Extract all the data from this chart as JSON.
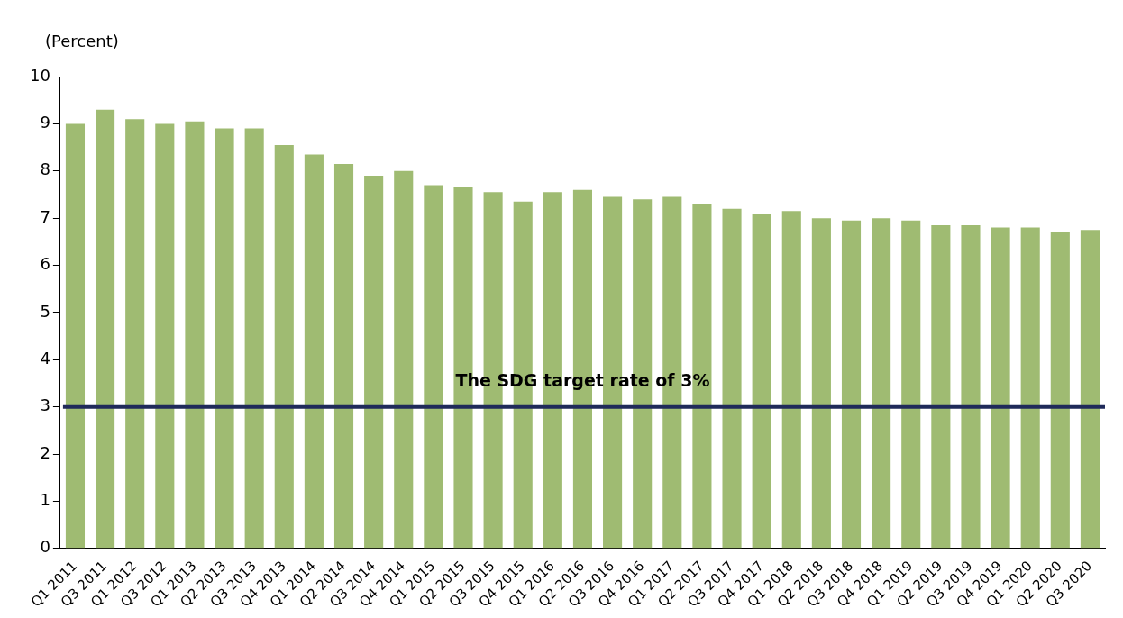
{
  "chart_data": {
    "type": "bar",
    "ylabel": "(Percent)",
    "categories": [
      "Q1 2011",
      "Q3 2011",
      "Q1 2012",
      "Q3 2012",
      "Q1 2013",
      "Q2 2013",
      "Q3 2013",
      "Q4 2013",
      "Q1 2014",
      "Q2 2014",
      "Q3 2014",
      "Q4 2014",
      "Q1 2015",
      "Q2 2015",
      "Q3 2015",
      "Q4 2015",
      "Q1 2016",
      "Q2 2016",
      "Q3 2016",
      "Q4 2016",
      "Q1 2017",
      "Q2 2017",
      "Q3 2017",
      "Q4 2017",
      "Q1 2018",
      "Q2 2018",
      "Q3 2018",
      "Q4 2018",
      "Q1 2019",
      "Q2 2019",
      "Q3 2019",
      "Q4 2019",
      "Q1 2020",
      "Q2 2020",
      "Q3 2020"
    ],
    "values": [
      9.0,
      9.3,
      9.1,
      9.0,
      9.05,
      8.9,
      8.9,
      8.55,
      8.35,
      8.15,
      7.9,
      8.0,
      7.7,
      7.65,
      7.55,
      7.35,
      7.55,
      7.6,
      7.45,
      7.4,
      7.45,
      7.3,
      7.2,
      7.1,
      7.15,
      7.0,
      6.95,
      7.0,
      6.95,
      6.85,
      6.85,
      6.8,
      6.8,
      6.7,
      6.75
    ],
    "color": "#9fbb72",
    "ylim": [
      0,
      10
    ],
    "yticks": [
      0,
      1,
      2,
      3,
      4,
      5,
      6,
      7,
      8,
      9,
      10
    ],
    "ref_lines": [
      {
        "axis": "y",
        "value": 3,
        "label": "The SDG target rate of 3%",
        "color": "#1f2a5a"
      }
    ],
    "grid": false,
    "legend": false
  }
}
